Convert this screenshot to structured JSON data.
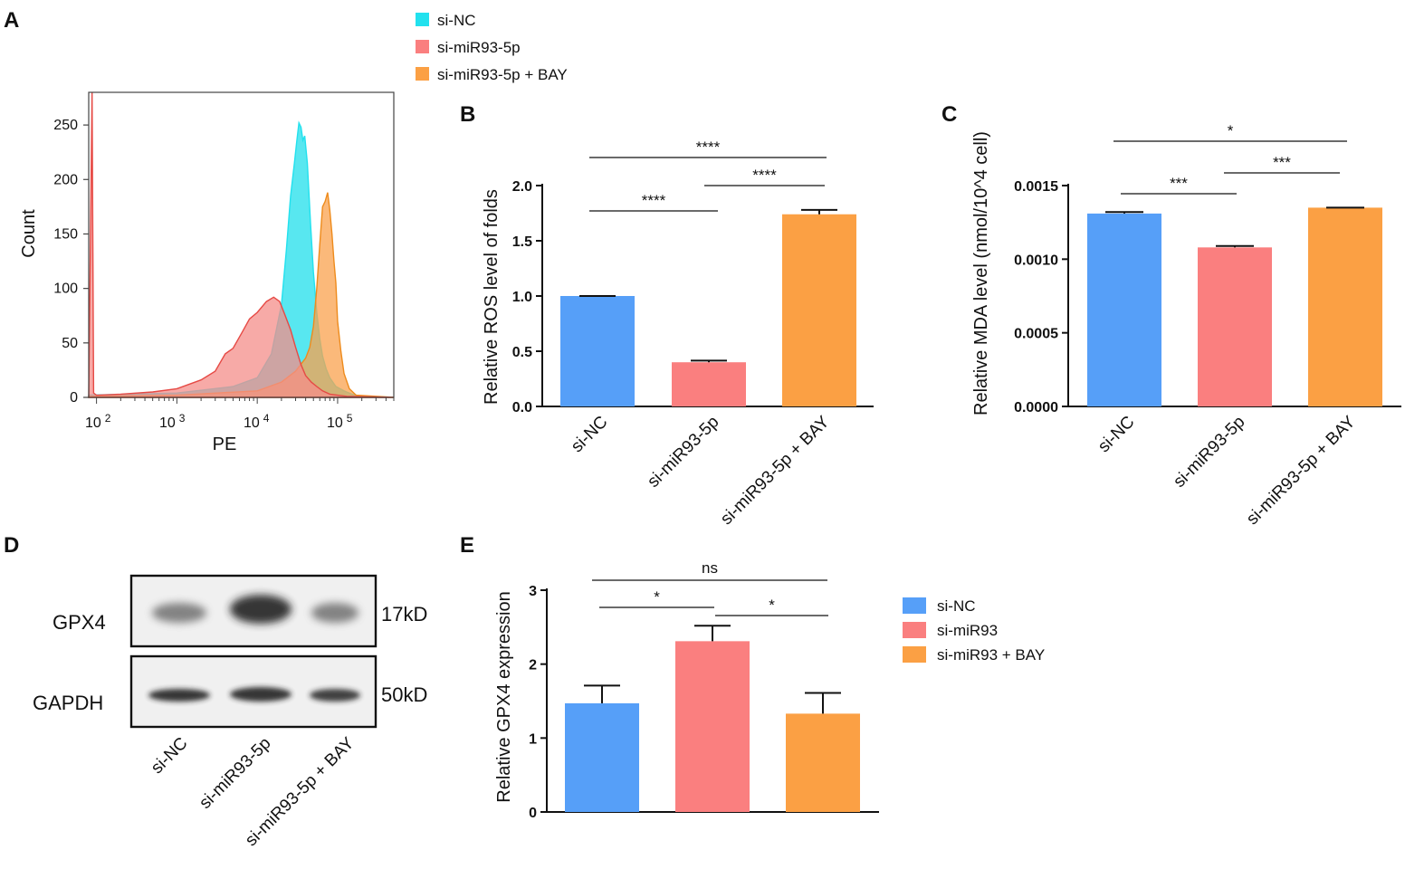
{
  "colors": {
    "blue": "#569ff8",
    "pink": "#fa7f7f",
    "orange": "#fba044",
    "cyan": "#22e1ee",
    "red": "#e64a45",
    "darkorange": "#ee8b1c"
  },
  "panels": {
    "a": "A",
    "b": "B",
    "c": "C",
    "d": "D",
    "e": "E"
  },
  "chart_data": [
    {
      "id": "A",
      "type": "area",
      "xlabel": "PE",
      "ylabel": "Count",
      "xscale": "log",
      "xlim": [
        80,
        500000
      ],
      "ylim": [
        0,
        280
      ],
      "ticks_y": [
        "0",
        "50",
        "100",
        "150",
        "200",
        "250"
      ],
      "ticks_x": [
        {
          "base": "10",
          "exp": "2"
        },
        {
          "base": "10",
          "exp": "3"
        },
        {
          "base": "10",
          "exp": "4"
        },
        {
          "base": "10",
          "exp": "5"
        }
      ],
      "legend": [
        "si-NC",
        "si-miR93-5p",
        "si-miR93-5p + BAY"
      ],
      "series": [
        {
          "name": "si-NC",
          "color": "#22e1ee",
          "fill": "#4fe6ef",
          "x": [
            80,
            1000,
            5000,
            10000,
            15000,
            20000,
            23000,
            26000,
            29000,
            31000,
            33000,
            35000,
            37000,
            39000,
            42000,
            46000,
            50000,
            55000,
            60000,
            65000,
            72000,
            80000,
            95000,
            120000,
            150000,
            200000,
            500000
          ],
          "y": [
            2,
            4,
            10,
            18,
            40,
            85,
            135,
            185,
            215,
            235,
            252,
            248,
            236,
            240,
            215,
            160,
            115,
            78,
            54,
            38,
            26,
            18,
            10,
            6,
            3,
            1,
            0
          ]
        },
        {
          "name": "si-miR93-5p + BAY",
          "color": "#ee8b1c",
          "fill": "#f9a14d",
          "x": [
            80,
            1000,
            10000,
            20000,
            30000,
            40000,
            45000,
            50000,
            55000,
            60000,
            65000,
            70000,
            75000,
            80000,
            85000,
            90000,
            95000,
            100000,
            110000,
            120000,
            140000,
            170000,
            500000
          ],
          "y": [
            1,
            2,
            6,
            14,
            24,
            36,
            46,
            65,
            100,
            140,
            175,
            180,
            188,
            172,
            150,
            125,
            105,
            70,
            42,
            22,
            8,
            2,
            0
          ]
        },
        {
          "name": "si-miR93-5p",
          "color": "#e64a45",
          "fill": "#f48d89",
          "x": [
            80,
            88,
            92,
            100,
            200,
            500,
            1000,
            2000,
            3000,
            4000,
            5000,
            6500,
            8000,
            10000,
            13000,
            16000,
            19000,
            22000,
            26000,
            30000,
            35000,
            40000,
            47000,
            55000,
            65000,
            80000,
            100000,
            130000,
            500000
          ],
          "y": [
            0,
            280,
            4,
            2,
            3,
            5,
            8,
            16,
            24,
            40,
            45,
            60,
            72,
            78,
            88,
            92,
            88,
            76,
            62,
            46,
            30,
            20,
            14,
            10,
            6,
            3,
            2,
            1,
            0
          ]
        }
      ]
    },
    {
      "id": "B",
      "type": "bar",
      "ylabel": "Relative ROS level of folds",
      "categories": [
        "si-NC",
        "si-miR93-5p",
        "si-miR93-5p + BAY"
      ],
      "values": [
        1.0,
        0.4,
        1.74
      ],
      "errors": [
        0.0,
        0.015,
        0.04
      ],
      "ylim": [
        0,
        2.0
      ],
      "ticks": [
        "0.0",
        "0.5",
        "1.0",
        "1.5",
        "2.0"
      ],
      "significance": [
        {
          "pair": [
            0,
            1
          ],
          "label": "****"
        },
        {
          "pair": [
            1,
            2
          ],
          "label": "****"
        },
        {
          "pair": [
            0,
            2
          ],
          "label": "****"
        }
      ]
    },
    {
      "id": "C",
      "type": "bar",
      "ylabel": "Relative MDA level (nmol/10^4 cell)",
      "categories": [
        "si-NC",
        "si-miR93-5p",
        "si-miR93-5p + BAY"
      ],
      "values": [
        0.00131,
        0.00108,
        0.00135
      ],
      "errors": [
        1e-05,
        1e-05,
        0.0
      ],
      "ylim": [
        0,
        0.0015
      ],
      "ticks": [
        "0.0000",
        "0.0005",
        "0.0010",
        "0.0015"
      ],
      "significance": [
        {
          "pair": [
            0,
            1
          ],
          "label": "***"
        },
        {
          "pair": [
            1,
            2
          ],
          "label": "***"
        },
        {
          "pair": [
            0,
            2
          ],
          "label": "*"
        }
      ]
    },
    {
      "id": "E",
      "type": "bar",
      "ylabel": "Relative GPX4 expression",
      "categories": [
        "si-NC",
        "si-miR93",
        "si-miR93 + BAY"
      ],
      "values": [
        1.47,
        2.31,
        1.33
      ],
      "errors": [
        0.24,
        0.21,
        0.28
      ],
      "ylim": [
        0,
        3
      ],
      "ticks": [
        "0",
        "1",
        "2",
        "3"
      ],
      "legend": [
        "si-NC",
        "si-miR93",
        "si-miR93 + BAY"
      ],
      "significance": [
        {
          "pair": [
            0,
            1
          ],
          "label": "*"
        },
        {
          "pair": [
            1,
            2
          ],
          "label": "*"
        },
        {
          "pair": [
            0,
            2
          ],
          "label": "ns"
        }
      ]
    }
  ],
  "blot": {
    "proteins": [
      {
        "name": "GPX4",
        "size": "17kD"
      },
      {
        "name": "GAPDH",
        "size": "50kD"
      }
    ],
    "lanes": [
      "si-NC",
      "si-miR93-5p",
      "si-miR93-5p + BAY"
    ]
  }
}
